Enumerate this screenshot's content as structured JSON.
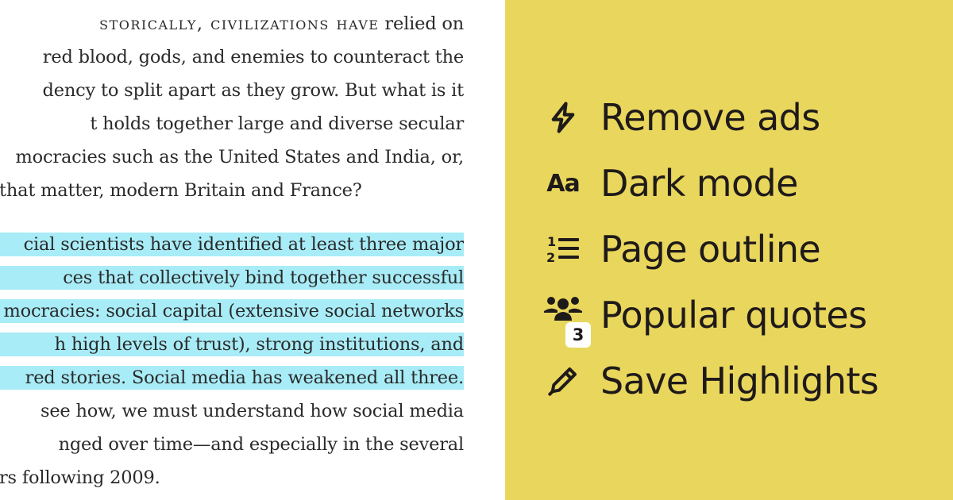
{
  "article": {
    "paragraph1": [
      {
        "smallcaps": "storically, civilizations have",
        "rest": " relied on"
      },
      {
        "text": "red blood, gods, and enemies to counteract the"
      },
      {
        "text": "dency to split apart as they grow. But what is it"
      },
      {
        "text": "t holds together large and diverse secular"
      },
      {
        "text": "mocracies such as the United States and India, or,"
      },
      {
        "text": " that matter, modern Britain and France?"
      }
    ],
    "paragraph2_highlighted": [
      "cial scientists have identified at least three major",
      "ces that collectively bind together successful",
      "mocracies: social capital (extensive social networks",
      "h high levels of trust), strong institutions, and",
      "red stories. Social media has weakened all three."
    ],
    "paragraph2_rest": [
      "see how, we must understand how social media",
      "nged over time—and especially in the several",
      "rs following 2009."
    ],
    "highlight_color": "#a8ecf7"
  },
  "panel": {
    "background": "#e9d65c",
    "features": [
      {
        "icon": "lightning-icon",
        "label": "Remove ads"
      },
      {
        "icon": "font-size-icon",
        "icon_text": "Aa",
        "label": "Dark mode"
      },
      {
        "icon": "numbered-list-icon",
        "label": "Page outline"
      },
      {
        "icon": "users-icon",
        "label": "Popular quotes",
        "badge": "3"
      },
      {
        "icon": "pen-icon",
        "label": "Save Highlights"
      }
    ]
  }
}
